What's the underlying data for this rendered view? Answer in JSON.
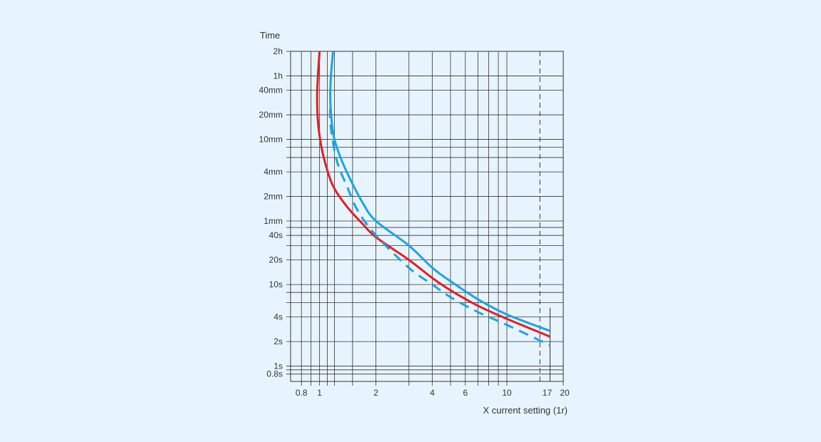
{
  "chart_data": {
    "type": "line",
    "title": "",
    "ylabel": "Time",
    "xlabel": "X current setting (1r)",
    "x_scale": "log",
    "y_scale": "log",
    "xlim": [
      0.7,
      20
    ],
    "ylim_seconds": [
      0.65,
      7200
    ],
    "x_ticks": [
      {
        "value": 0.8,
        "label": "0.8"
      },
      {
        "value": 1,
        "label": "1"
      },
      {
        "value": 2,
        "label": "2"
      },
      {
        "value": 4,
        "label": "4"
      },
      {
        "value": 6,
        "label": "6"
      },
      {
        "value": 10,
        "label": "10"
      },
      {
        "value": 17,
        "label": "17"
      },
      {
        "value": 20,
        "label": "20"
      }
    ],
    "x_gridlines": [
      0.8,
      0.9,
      1,
      1.1,
      1.2,
      1.5,
      2,
      3,
      4,
      5,
      6,
      7,
      8,
      9,
      10,
      20
    ],
    "y_ticks": [
      {
        "value": 7200,
        "label": "2h"
      },
      {
        "value": 3600,
        "label": "1h"
      },
      {
        "value": 2400,
        "label": "40mm"
      },
      {
        "value": 1200,
        "label": "20mm"
      },
      {
        "value": 600,
        "label": "10mm"
      },
      {
        "value": 240,
        "label": "4mm"
      },
      {
        "value": 120,
        "label": "2mm"
      },
      {
        "value": 60,
        "label": "1mm"
      },
      {
        "value": 40,
        "label": "40s"
      },
      {
        "value": 20,
        "label": "20s"
      },
      {
        "value": 10,
        "label": "10s"
      },
      {
        "value": 4,
        "label": "4s"
      },
      {
        "value": 2,
        "label": "2s"
      },
      {
        "value": 1,
        "label": "1s"
      },
      {
        "value": 0.8,
        "label": "0.8s"
      }
    ],
    "y_gridlines": [
      7200,
      3600,
      2400,
      1200,
      600,
      480,
      360,
      240,
      120,
      60,
      50,
      40,
      30,
      20,
      10,
      8,
      6,
      4,
      2,
      1,
      0.9,
      0.8
    ],
    "reference_line": {
      "x": 15,
      "style": "dashed",
      "color": "#333333"
    },
    "series": [
      {
        "name": "red-curve",
        "color": "#e31e24",
        "style": "solid",
        "points": [
          [
            1.0,
            7200
          ],
          [
            0.98,
            3600
          ],
          [
            0.97,
            2000
          ],
          [
            0.98,
            1000
          ],
          [
            1.02,
            500
          ],
          [
            1.1,
            250
          ],
          [
            1.2,
            150
          ],
          [
            1.4,
            90
          ],
          [
            1.7,
            55
          ],
          [
            2.0,
            38
          ],
          [
            3.0,
            20
          ],
          [
            4.0,
            12
          ],
          [
            5.0,
            8.5
          ],
          [
            7.0,
            5.5
          ],
          [
            10.0,
            3.8
          ],
          [
            17.0,
            2.3
          ]
        ]
      },
      {
        "name": "blue-curve",
        "color": "#1ca4e0",
        "style": "solid",
        "points": [
          [
            1.18,
            7200
          ],
          [
            1.15,
            3600
          ],
          [
            1.14,
            2000
          ],
          [
            1.16,
            1000
          ],
          [
            1.2,
            600
          ],
          [
            1.3,
            350
          ],
          [
            1.45,
            200
          ],
          [
            1.7,
            100
          ],
          [
            2.0,
            60
          ],
          [
            3.0,
            30
          ],
          [
            4.0,
            16
          ],
          [
            5.0,
            11
          ],
          [
            7.0,
            6.6
          ],
          [
            10.0,
            4.3
          ],
          [
            17.0,
            2.7
          ]
        ]
      },
      {
        "name": "blue-dashed-curve",
        "color": "#1ca4e0",
        "style": "dashed",
        "points": [
          [
            1.14,
            1450
          ],
          [
            1.14,
            1000
          ],
          [
            1.18,
            550
          ],
          [
            1.25,
            300
          ],
          [
            1.4,
            160
          ],
          [
            1.6,
            80
          ],
          [
            2.0,
            40
          ],
          [
            3.0,
            16
          ],
          [
            4.0,
            10
          ],
          [
            5.0,
            7
          ],
          [
            7.0,
            4.6
          ],
          [
            10.0,
            3.2
          ],
          [
            17.0,
            1.8
          ]
        ]
      }
    ]
  }
}
